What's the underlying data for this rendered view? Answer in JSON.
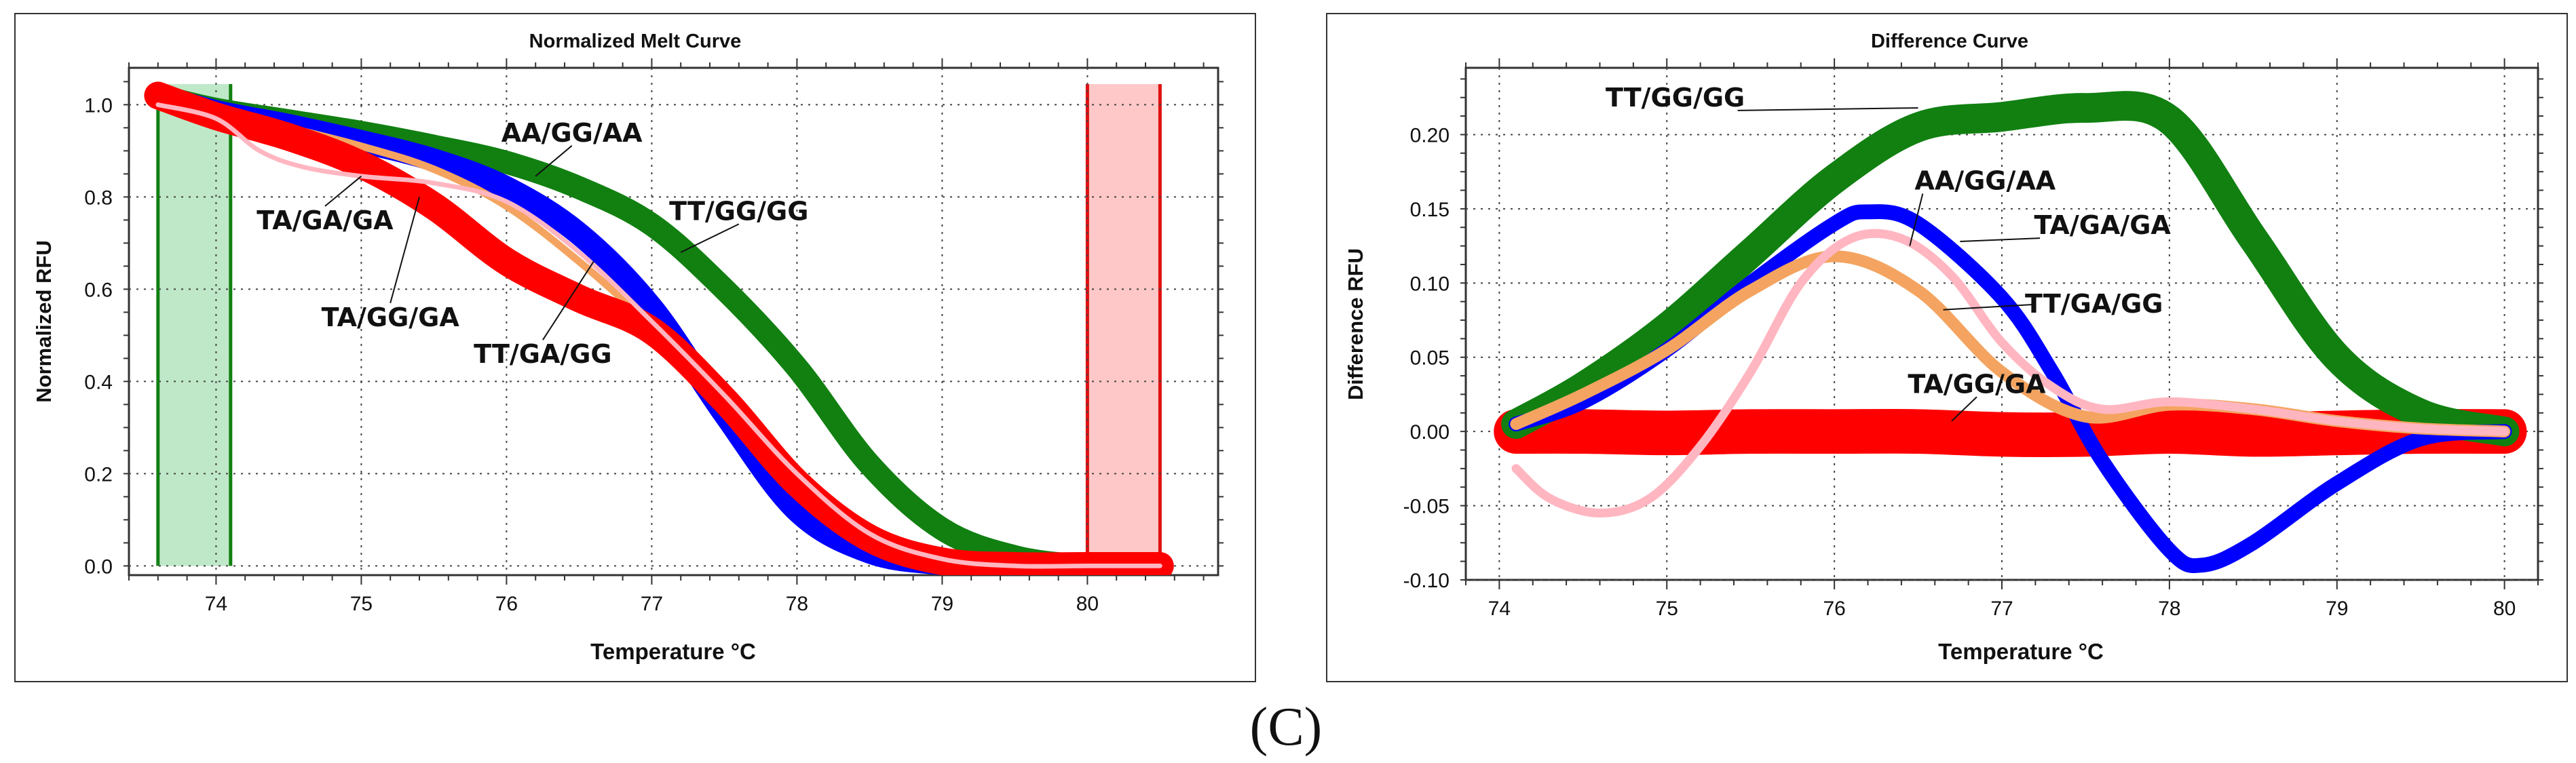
{
  "figure_label": "(C)",
  "colors": {
    "AA/GG/AA": "#0000ff",
    "TT/GG/GG": "#118011",
    "TA/GG/GA": "#ff0000",
    "TA/GA/GA": "#ffb6c1",
    "TT/GA/GG": "#f4a460",
    "green_region": "#bfe8c8",
    "green_region_edge": "#118011",
    "red_region": "#ffc8c8",
    "red_region_edge": "#e01010"
  },
  "chart_data": [
    {
      "type": "line",
      "title": "Normalized Melt Curve",
      "xlabel": "Temperature  °C",
      "ylabel": "Normalized RFU",
      "xlim": [
        73.4,
        80.9
      ],
      "ylim": [
        -0.02,
        1.08
      ],
      "xticks": [
        74,
        75,
        76,
        77,
        78,
        79,
        80
      ],
      "yticks": [
        0.0,
        0.2,
        0.4,
        0.6,
        0.8,
        1.0
      ],
      "xtick_labels": [
        "74",
        "75",
        "76",
        "77",
        "78",
        "79",
        "80"
      ],
      "ytick_labels": [
        "0.0",
        "0.2",
        "0.4",
        "0.6",
        "0.8",
        "1.0"
      ],
      "grid": true,
      "shaded_regions": [
        {
          "x_start": 73.6,
          "x_end": 74.1,
          "color": "green"
        },
        {
          "x_start": 80.0,
          "x_end": 80.5,
          "color": "red"
        }
      ],
      "series": [
        {
          "name": "TT/GG/GG",
          "band": 0.025,
          "x": [
            73.6,
            74.0,
            74.5,
            75.0,
            75.5,
            76.0,
            76.5,
            77.0,
            77.5,
            78.0,
            78.5,
            79.0,
            79.5,
            80.0,
            80.5
          ],
          "y": [
            1.02,
            0.99,
            0.965,
            0.94,
            0.91,
            0.875,
            0.82,
            0.74,
            0.6,
            0.43,
            0.22,
            0.08,
            0.02,
            0.0,
            0.0
          ]
        },
        {
          "name": "AA/GG/AA",
          "band": 0.025,
          "x": [
            73.6,
            74.0,
            74.5,
            75.0,
            75.5,
            76.0,
            76.5,
            77.0,
            77.5,
            78.0,
            78.5,
            79.0,
            79.5,
            80.0,
            80.5
          ],
          "y": [
            1.02,
            0.985,
            0.955,
            0.92,
            0.88,
            0.82,
            0.72,
            0.56,
            0.33,
            0.12,
            0.03,
            0.005,
            0.0,
            0.0,
            0.0
          ]
        },
        {
          "name": "TT/GA/GG",
          "band": 0.008,
          "x": [
            73.6,
            74.0,
            74.5,
            75.0,
            75.5,
            76.0,
            76.5,
            77.0,
            77.5,
            78.0,
            78.5,
            79.0,
            79.5,
            80.0,
            80.5
          ],
          "y": [
            1.02,
            0.985,
            0.95,
            0.91,
            0.86,
            0.78,
            0.66,
            0.52,
            0.37,
            0.2,
            0.07,
            0.015,
            0.0,
            0.0,
            0.0
          ]
        },
        {
          "name": "TA/GG/GA",
          "band": 0.03,
          "x": [
            73.6,
            74.0,
            74.5,
            75.0,
            75.5,
            76.0,
            76.5,
            77.0,
            77.5,
            78.0,
            78.5,
            79.0,
            79.5,
            80.0,
            80.5
          ],
          "y": [
            1.02,
            0.975,
            0.93,
            0.87,
            0.78,
            0.66,
            0.58,
            0.51,
            0.36,
            0.18,
            0.06,
            0.01,
            0.0,
            0.0,
            0.0
          ]
        },
        {
          "name": "TA/GA/GA",
          "band": 0.005,
          "x": [
            73.6,
            74.0,
            74.3,
            74.6,
            75.0,
            75.5,
            76.0,
            76.5,
            77.0,
            77.5,
            78.0,
            78.5,
            79.0,
            79.5,
            80.0,
            80.5
          ],
          "y": [
            1.0,
            0.97,
            0.9,
            0.865,
            0.845,
            0.83,
            0.79,
            0.68,
            0.53,
            0.37,
            0.2,
            0.07,
            0.015,
            0.0,
            0.0,
            0.0
          ]
        }
      ],
      "annotations": [
        {
          "text": "AA/GG/AA",
          "x": 76.45,
          "y": 0.92,
          "arrow_to": [
            76.2,
            0.845
          ]
        },
        {
          "text": "TT/GG/GG",
          "x": 77.6,
          "y": 0.75,
          "arrow_to": [
            77.2,
            0.68
          ]
        },
        {
          "text": "TA/GA/GA",
          "x": 74.75,
          "y": 0.73,
          "arrow_to": [
            75.0,
            0.845
          ]
        },
        {
          "text": "TA/GG/GA",
          "x": 75.2,
          "y": 0.52,
          "arrow_to": [
            75.4,
            0.8
          ]
        },
        {
          "text": "TT/GA/GG",
          "x": 76.25,
          "y": 0.44,
          "arrow_to": [
            76.6,
            0.66
          ]
        }
      ]
    },
    {
      "type": "line",
      "title": "Difference Curve",
      "xlabel": "Temperature  °C",
      "ylabel": "Difference RFU",
      "xlim": [
        73.8,
        80.2
      ],
      "ylim": [
        -0.1,
        0.245
      ],
      "xticks": [
        74,
        75,
        76,
        77,
        78,
        79,
        80
      ],
      "yticks": [
        -0.1,
        -0.05,
        0.0,
        0.05,
        0.1,
        0.15,
        0.2
      ],
      "xtick_labels": [
        "74",
        "75",
        "76",
        "77",
        "78",
        "79",
        "80"
      ],
      "ytick_labels": [
        "-0.10",
        "-0.05",
        "0.00",
        "0.05",
        "0.10",
        "0.15",
        "0.20"
      ],
      "grid": true,
      "series": [
        {
          "name": "TA/GG/GA",
          "band": 0.015,
          "x": [
            74.1,
            74.5,
            75.0,
            75.5,
            76.0,
            76.5,
            77.0,
            77.5,
            78.0,
            78.5,
            79.0,
            79.5,
            80.0
          ],
          "y": [
            0.0,
            0.0,
            -0.001,
            0.0,
            0.0,
            0.0,
            -0.002,
            -0.002,
            0.0,
            -0.002,
            -0.001,
            0.0,
            0.0
          ]
        },
        {
          "name": "TT/GG/GG",
          "band": 0.01,
          "x": [
            74.1,
            74.5,
            75.0,
            75.5,
            76.0,
            76.5,
            77.0,
            77.5,
            78.0,
            78.5,
            79.0,
            79.5,
            80.0
          ],
          "y": [
            0.005,
            0.03,
            0.07,
            0.12,
            0.17,
            0.205,
            0.212,
            0.218,
            0.21,
            0.13,
            0.05,
            0.012,
            0.0
          ]
        },
        {
          "name": "AA/GG/AA",
          "band": 0.005,
          "x": [
            74.1,
            74.5,
            75.0,
            75.5,
            76.0,
            76.2,
            76.5,
            77.0,
            77.3,
            77.6,
            78.0,
            78.2,
            78.5,
            79.0,
            79.5,
            80.0
          ],
          "y": [
            0.005,
            0.02,
            0.055,
            0.1,
            0.14,
            0.148,
            0.14,
            0.09,
            0.04,
            -0.02,
            -0.08,
            -0.09,
            -0.075,
            -0.035,
            -0.005,
            0.0
          ]
        },
        {
          "name": "TT/GA/GG",
          "band": 0.004,
          "x": [
            74.1,
            74.5,
            75.0,
            75.5,
            76.0,
            76.5,
            77.0,
            77.5,
            78.0,
            78.5,
            79.0,
            79.5,
            80.0
          ],
          "y": [
            0.005,
            0.025,
            0.055,
            0.095,
            0.118,
            0.095,
            0.04,
            0.01,
            0.018,
            0.015,
            0.007,
            0.002,
            0.0
          ]
        },
        {
          "name": "TA/GA/GA",
          "band": 0.003,
          "x": [
            74.1,
            74.3,
            74.6,
            74.9,
            75.2,
            75.5,
            75.8,
            76.1,
            76.4,
            76.7,
            77.0,
            77.3,
            77.6,
            78.0,
            78.5,
            79.0,
            79.5,
            80.0
          ],
          "y": [
            -0.025,
            -0.045,
            -0.055,
            -0.045,
            -0.01,
            0.04,
            0.1,
            0.13,
            0.13,
            0.105,
            0.06,
            0.03,
            0.015,
            0.02,
            0.015,
            0.007,
            0.002,
            0.0
          ]
        }
      ],
      "annotations": [
        {
          "text": "TT/GG/GG",
          "x": 75.05,
          "y": 0.219,
          "arrow_to": [
            76.5,
            0.218
          ]
        },
        {
          "text": "AA/GG/AA",
          "x": 76.9,
          "y": 0.163,
          "arrow_to": [
            76.45,
            0.125
          ]
        },
        {
          "text": "TA/GA/GA",
          "x": 77.6,
          "y": 0.133,
          "arrow_to": [
            76.75,
            0.128
          ]
        },
        {
          "text": "TT/GA/GG",
          "x": 77.55,
          "y": 0.08,
          "arrow_to": [
            76.65,
            0.082
          ]
        },
        {
          "text": "TA/GG/GA",
          "x": 76.85,
          "y": 0.026,
          "arrow_to": [
            76.7,
            0.007
          ]
        }
      ]
    }
  ]
}
